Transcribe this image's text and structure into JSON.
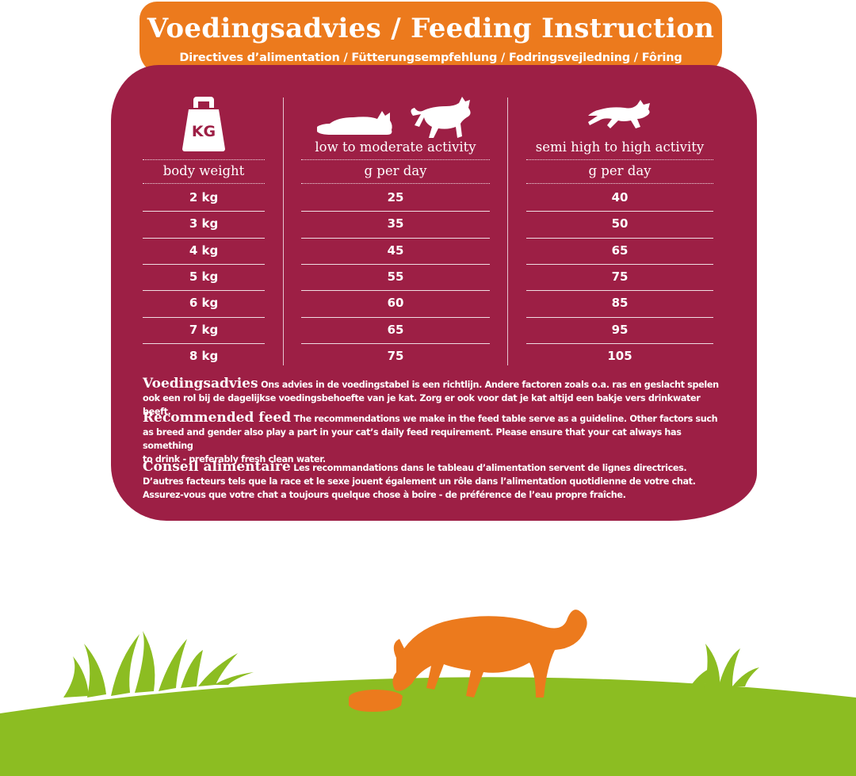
{
  "header": {
    "title": "Voedingsadvies / Feeding Instruction",
    "subtitle": "Directives d’alimentation / Fütterungsempfehlung / Fodringsvejledning / Fôring"
  },
  "table": {
    "weight_icon_text": "KG",
    "columns": [
      {
        "header": "",
        "unit": "body weight"
      },
      {
        "header": "low to moderate activity",
        "unit": "g per day"
      },
      {
        "header": "semi high to high activity",
        "unit": "g per day"
      }
    ],
    "rows": [
      {
        "weight": "2 kg",
        "low": "25",
        "high": "40"
      },
      {
        "weight": "3 kg",
        "low": "35",
        "high": "50"
      },
      {
        "weight": "4 kg",
        "low": "45",
        "high": "65"
      },
      {
        "weight": "5 kg",
        "low": "55",
        "high": "75"
      },
      {
        "weight": "6 kg",
        "low": "60",
        "high": "85"
      },
      {
        "weight": "7 kg",
        "low": "65",
        "high": "95"
      },
      {
        "weight": "8 kg",
        "low": "75",
        "high": "105"
      }
    ]
  },
  "advice": [
    {
      "lead": "Voedingsadvies",
      "lines": [
        " Ons advies in de voedingstabel is een richtlijn. Andere factoren zoals o.a. ras en geslacht spelen",
        "ook een rol bij de dagelijkse voedingsbehoefte van je kat. Zorg er ook voor dat je kat altijd een bakje vers drinkwater heeft."
      ]
    },
    {
      "lead": "Recommended feed",
      "lines": [
        " The recommendations we make in the feed table serve as a guideline. Other factors such",
        "as breed and gender also play a part in your cat’s daily feed requirement. Please ensure that your cat always has something",
        "to drink - preferably fresh clean water."
      ]
    },
    {
      "lead": "Conseil alimentaire",
      "lines": [
        " Les recommandations dans le tableau d’alimentation servent de lignes directrices.",
        "D’autres facteurs tels que la race et le sexe jouent également un rôle dans l’alimentation quotidienne de votre chat.",
        "Assurez-vous que votre chat a toujours quelque chose à boire - de préférence de l’eau propre fraîche."
      ]
    }
  ],
  "colors": {
    "banner": "#ec7a1d",
    "card": "#9d1f45",
    "cat": "#ec7a1d",
    "grass": "#8cbd22"
  },
  "icons": [
    "weight-kg-icon",
    "lying-cat-icon",
    "standing-cat-icon",
    "running-cat-icon",
    "eating-cat-illustration",
    "food-bowl-icon",
    "grass-hill"
  ]
}
